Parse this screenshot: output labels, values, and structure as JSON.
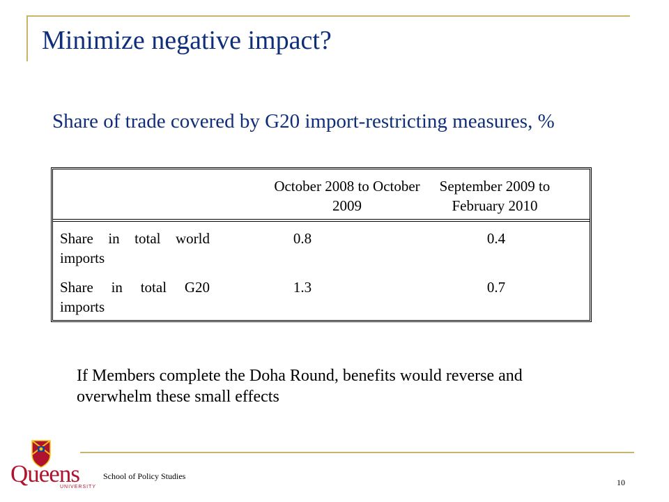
{
  "slide": {
    "title": "Minimize negative impact?",
    "subtitle": "Share of trade covered by G20 import-restricting measures, %"
  },
  "table": {
    "columns": [
      "October 2008 to October 2009",
      "September 2009 to February 2010"
    ],
    "rows": [
      {
        "label": "Share in total world imports",
        "values": [
          "0.8",
          "0.4"
        ]
      },
      {
        "label": "Share in total G20 imports",
        "values": [
          "1.3",
          "0.7"
        ]
      }
    ]
  },
  "note": "If Members complete the Doha Round, benefits would reverse and overwhelm these small effects",
  "footer": {
    "logo_text": "Queens",
    "logo_sub": "UNIVERSITY",
    "school": "School of Policy Studies",
    "page_number": "10"
  },
  "colors": {
    "title": "#0f2e7a",
    "frame": "#c8b56a",
    "logo": "#b1122e"
  }
}
